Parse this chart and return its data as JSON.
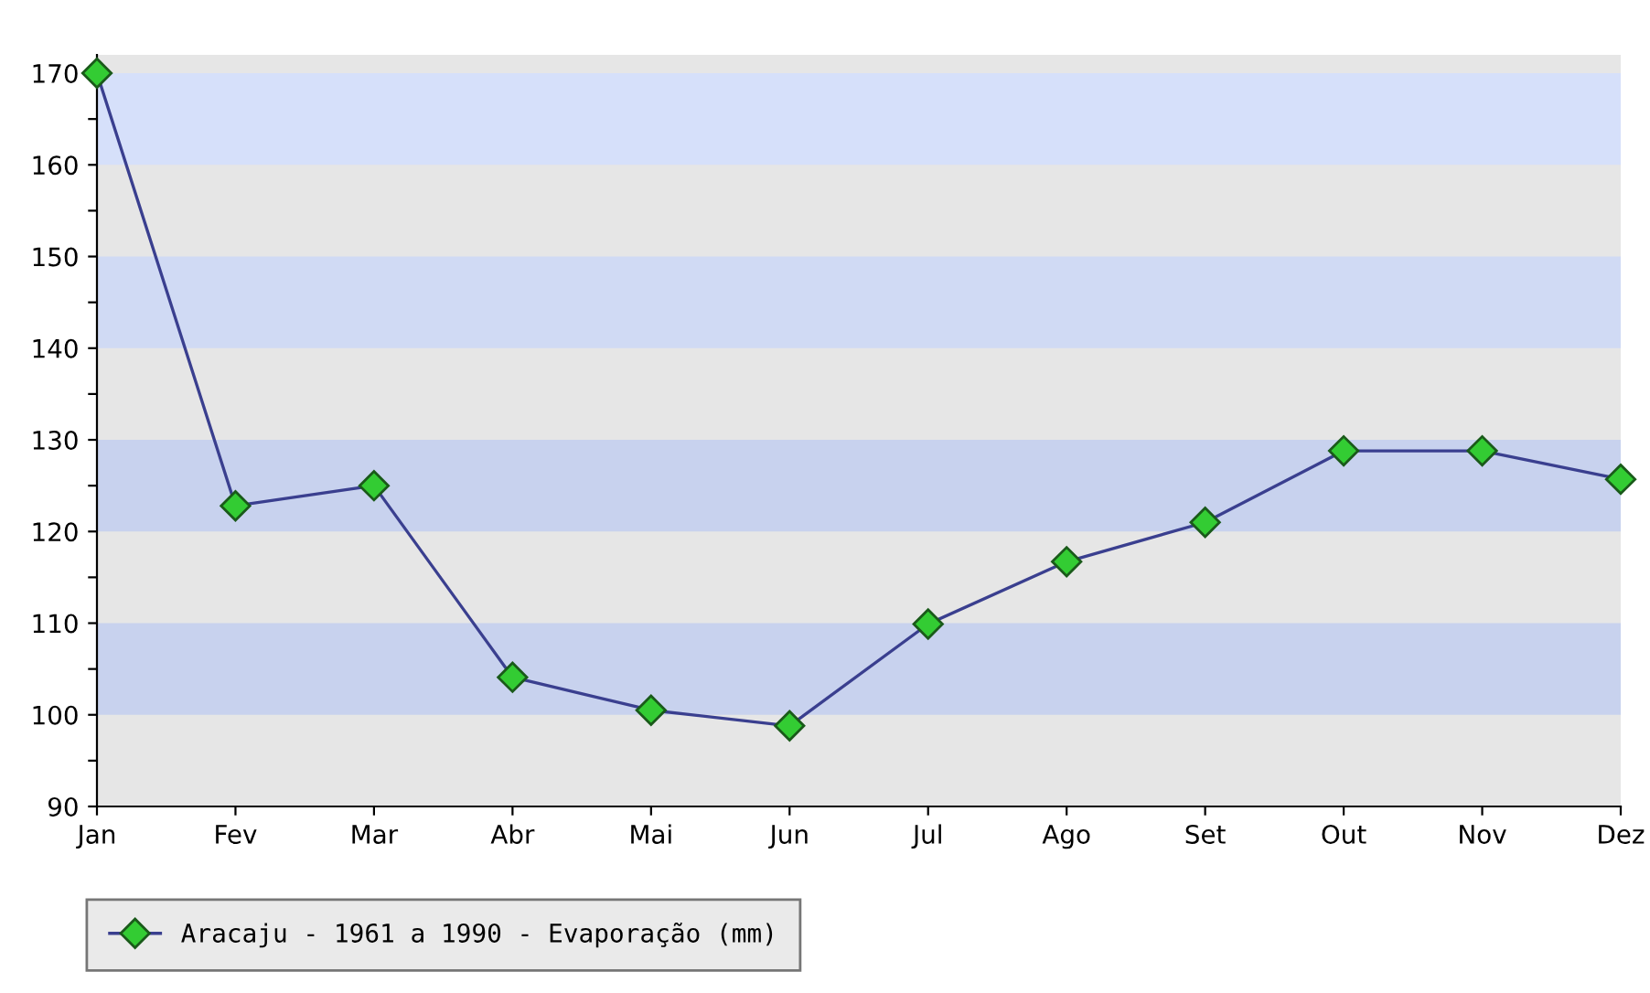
{
  "chart_data": {
    "type": "line",
    "categories": [
      "Jan",
      "Fev",
      "Mar",
      "Abr",
      "Mai",
      "Jun",
      "Jul",
      "Ago",
      "Set",
      "Out",
      "Nov",
      "Dez"
    ],
    "series": [
      {
        "name": "Aracaju - 1961 a 1990 - Evaporação (mm)",
        "color": "#3a3f8f",
        "values": [
          170,
          122.8,
          125.0,
          104.1,
          100.5,
          98.8,
          109.9,
          116.7,
          121.0,
          128.8,
          128.8,
          125.7
        ]
      }
    ],
    "ylim": [
      90,
      172
    ],
    "yticks": [
      90,
      {
        "value": 95,
        "label": null
      },
      100,
      {
        "value": 105,
        "label": null
      },
      110,
      {
        "value": 115,
        "label": null
      },
      120,
      {
        "value": 125,
        "label": null
      },
      130,
      {
        "value": 135,
        "label": null
      },
      140,
      {
        "value": 145,
        "label": null
      },
      150,
      {
        "value": 155,
        "label": null
      },
      160,
      {
        "value": 165,
        "label": null
      },
      170
    ],
    "bands": [
      {
        "axis": "y",
        "from": 100,
        "to": 110,
        "color": "#c8d2ee"
      },
      {
        "axis": "y",
        "from": 120,
        "to": 130,
        "color": "#c8d2ee"
      },
      {
        "axis": "y",
        "from": 140,
        "to": 150,
        "color": "#d0daf4"
      },
      {
        "axis": "y",
        "from": 160,
        "to": 170,
        "color": "#d6e0fa"
      }
    ],
    "marker": "diamond",
    "line_style": "solid",
    "legend": "bottom",
    "grid": false
  }
}
